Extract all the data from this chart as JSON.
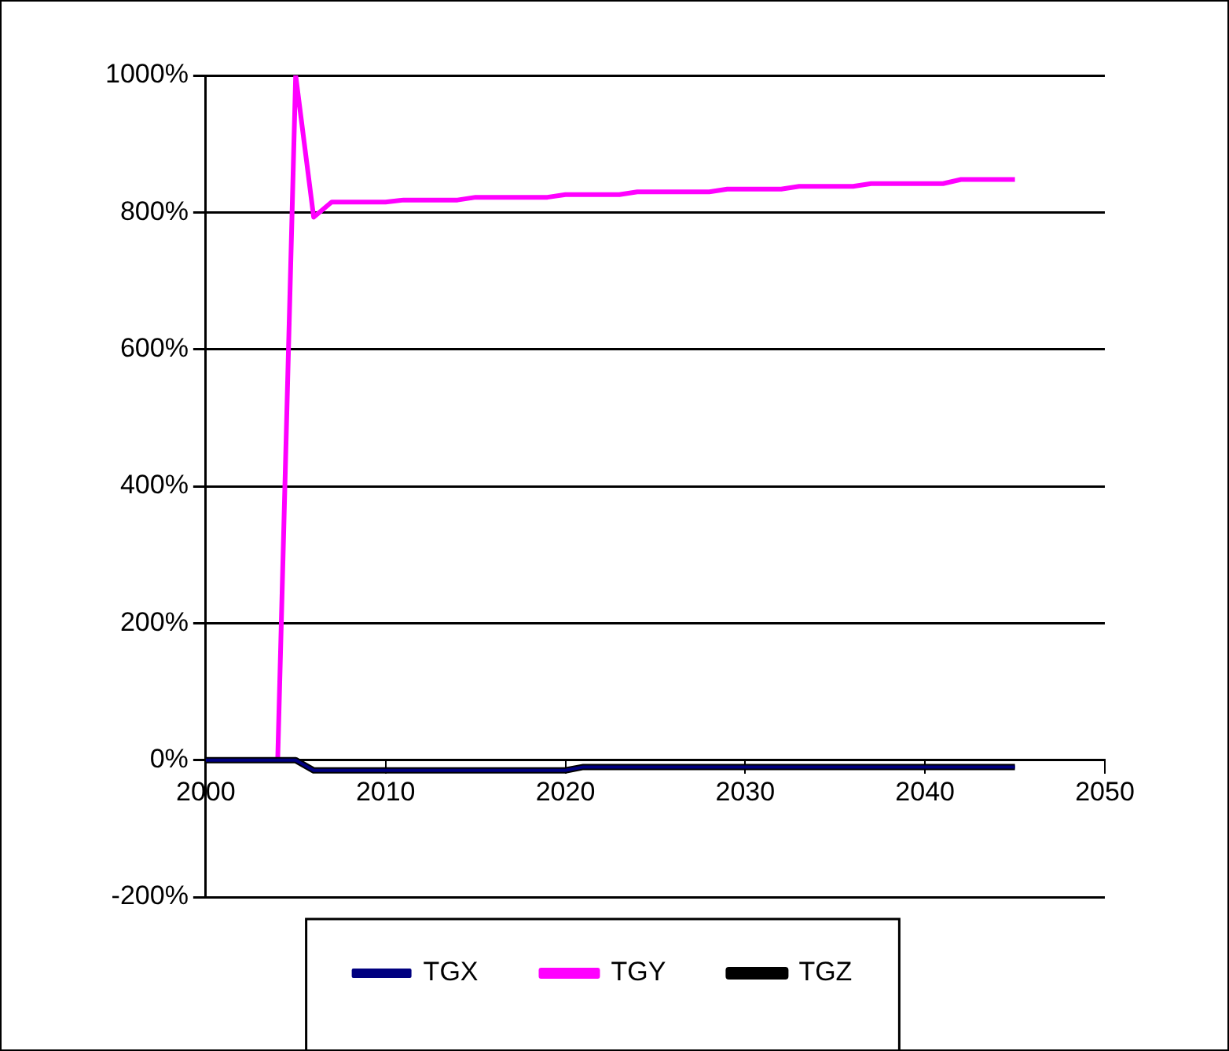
{
  "chart_data": {
    "type": "line",
    "x": [
      2000,
      2001,
      2002,
      2003,
      2004,
      2005,
      2006,
      2007,
      2008,
      2009,
      2010,
      2011,
      2012,
      2013,
      2014,
      2015,
      2016,
      2017,
      2018,
      2019,
      2020,
      2021,
      2022,
      2023,
      2024,
      2025,
      2026,
      2027,
      2028,
      2029,
      2030,
      2031,
      2032,
      2033,
      2034,
      2035,
      2036,
      2037,
      2038,
      2039,
      2040,
      2041,
      2042,
      2043,
      2044,
      2045
    ],
    "series": [
      {
        "name": "TGX",
        "color": "#000080",
        "values": [
          0,
          0,
          0,
          0,
          0,
          0,
          -15,
          -15,
          -15,
          -15,
          -15,
          -15,
          -15,
          -15,
          -15,
          -15,
          -15,
          -15,
          -15,
          -15,
          -15,
          -10,
          -10,
          -10,
          -10,
          -10,
          -10,
          -10,
          -10,
          -10,
          -10,
          -10,
          -10,
          -10,
          -10,
          -10,
          -10,
          -10,
          -10,
          -10,
          -10,
          -10,
          -10,
          -10,
          -10,
          -10
        ]
      },
      {
        "name": "TGY",
        "color": "#ff00ff",
        "values": [
          null,
          null,
          null,
          null,
          0,
          1000,
          793,
          815,
          815,
          815,
          815,
          818,
          818,
          818,
          818,
          822,
          822,
          822,
          822,
          822,
          826,
          826,
          826,
          826,
          830,
          830,
          830,
          830,
          830,
          834,
          834,
          834,
          834,
          838,
          838,
          838,
          838,
          842,
          842,
          842,
          842,
          842,
          848,
          848,
          848,
          848
        ]
      },
      {
        "name": "TGZ",
        "color": "#000000",
        "values": [
          0,
          0,
          0,
          0,
          0,
          0,
          -15,
          -15,
          -15,
          -15,
          -15,
          -15,
          -15,
          -15,
          -15,
          -15,
          -15,
          -15,
          -15,
          -15,
          -15,
          -10,
          -10,
          -10,
          -10,
          -10,
          -10,
          -10,
          -10,
          -10,
          -10,
          -10,
          -10,
          -10,
          -10,
          -10,
          -10,
          -10,
          -10,
          -10,
          -10,
          -10,
          -10,
          -10,
          -10,
          -10
        ]
      }
    ],
    "xlim": [
      2000,
      2050
    ],
    "xticks": [
      2000,
      2010,
      2020,
      2030,
      2040,
      2050
    ],
    "ylim": [
      -200,
      1000
    ],
    "yticks": [
      {
        "value": -200,
        "label": "-200%"
      },
      {
        "value": 0,
        "label": "0%"
      },
      {
        "value": 200,
        "label": "200%"
      },
      {
        "value": 400,
        "label": "400%"
      },
      {
        "value": 600,
        "label": "600%"
      },
      {
        "value": 800,
        "label": "800%"
      },
      {
        "value": 1000,
        "label": "1000%"
      }
    ],
    "grid": "y",
    "legend": "bottom",
    "marker": "none",
    "line_style": "solid"
  }
}
